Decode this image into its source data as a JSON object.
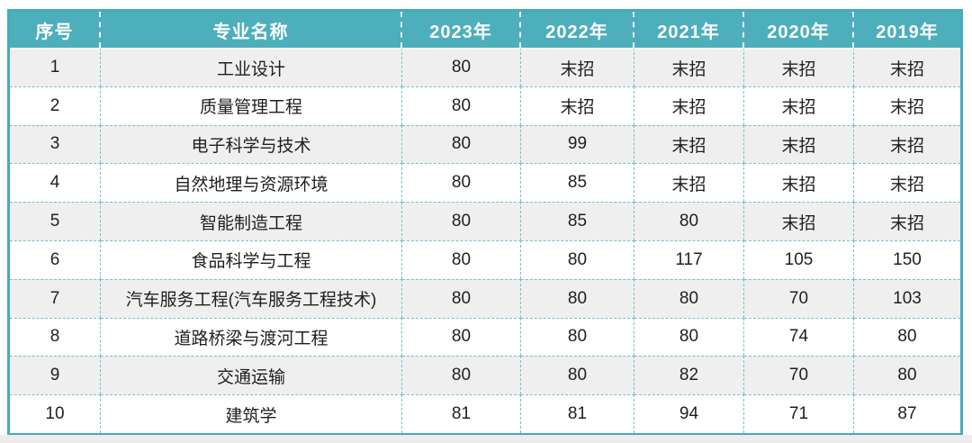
{
  "chart_data": {
    "type": "table",
    "title": "",
    "columns": [
      "序号",
      "专业名称",
      "2023年",
      "2022年",
      "2021年",
      "2020年",
      "2019年"
    ],
    "rows": [
      [
        "1",
        "工业设计",
        "80",
        "末招",
        "末招",
        "末招",
        "末招"
      ],
      [
        "2",
        "质量管理工程",
        "80",
        "末招",
        "末招",
        "末招",
        "末招"
      ],
      [
        "3",
        "电子科学与技术",
        "80",
        "99",
        "末招",
        "末招",
        "末招"
      ],
      [
        "4",
        "自然地理与资源环境",
        "80",
        "85",
        "末招",
        "末招",
        "末招"
      ],
      [
        "5",
        "智能制造工程",
        "80",
        "85",
        "80",
        "末招",
        "末招"
      ],
      [
        "6",
        "食品科学与工程",
        "80",
        "80",
        "117",
        "105",
        "150"
      ],
      [
        "7",
        "汽车服务工程(汽车服务工程技术)",
        "80",
        "80",
        "80",
        "70",
        "103"
      ],
      [
        "8",
        "道路桥梁与渡河工程",
        "80",
        "80",
        "80",
        "74",
        "80"
      ],
      [
        "9",
        "交通运输",
        "80",
        "80",
        "82",
        "70",
        "80"
      ],
      [
        "10",
        "建筑学",
        "81",
        "81",
        "94",
        "71",
        "87"
      ]
    ],
    "layout_hints": {
      "striped_rows": "odd rows light gray, even rows white",
      "grid": "dashed teal inner lines, solid teal outer border"
    }
  },
  "colors": {
    "header_bg": "#4DAFBC",
    "header_text": "#FFFFFF",
    "outer_border": "#47ABB9",
    "grid_dashed": "#74C2CC",
    "row_alt_bg": "#EFEFEF",
    "row_bg": "#FFFFFF",
    "body_text": "#1F1F1F",
    "page_bottom_strip": "#ECECEC"
  }
}
